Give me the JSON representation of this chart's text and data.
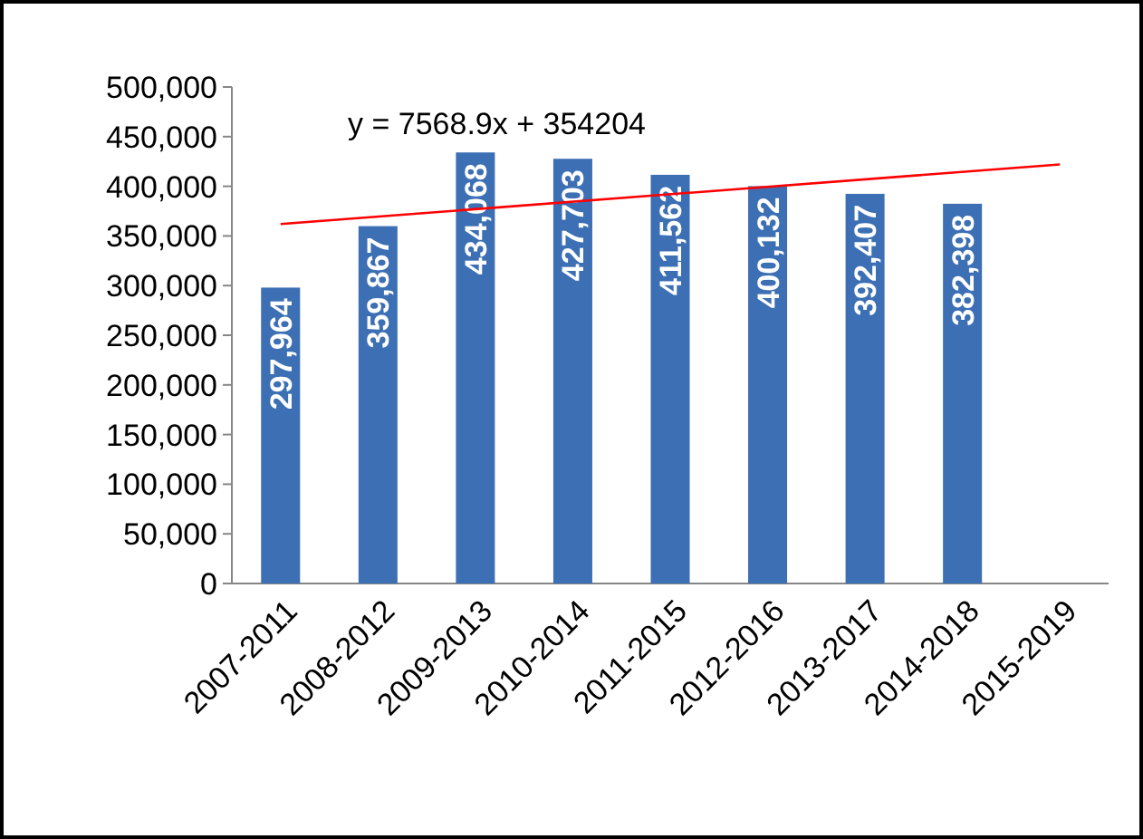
{
  "chart_data": {
    "type": "bar",
    "categories": [
      "2007-2011",
      "2008-2012",
      "2009-2013",
      "2010-2014",
      "2011-2015",
      "2012-2016",
      "2013-2017",
      "2014-2018",
      "2015-2019"
    ],
    "series": [
      {
        "color": "#3c6fb4",
        "values": [
          297964,
          359867,
          434068,
          427703,
          411562,
          400132,
          392407,
          382398,
          null
        ],
        "value_labels": [
          "297,964",
          "359,867",
          "434,068",
          "427,703",
          "411,562",
          "400,132",
          "392,407",
          "382,398",
          null
        ]
      },
      {
        "type": "line",
        "color": "#ff0000",
        "x": [
          "2007-2011",
          "2015-2019"
        ],
        "values": [
          362000,
          422000
        ]
      }
    ],
    "ylim": [
      0,
      500000
    ],
    "yticks": [
      {
        "value": 0,
        "label": "0"
      },
      {
        "value": 50000,
        "label": "50,000"
      },
      {
        "value": 100000,
        "label": "100,000"
      },
      {
        "value": 150000,
        "label": "150,000"
      },
      {
        "value": 200000,
        "label": "200,000"
      },
      {
        "value": 250000,
        "label": "250,000"
      },
      {
        "value": 300000,
        "label": "300,000"
      },
      {
        "value": 350000,
        "label": "350,000"
      },
      {
        "value": 400000,
        "label": "400,000"
      },
      {
        "value": 450000,
        "label": "450,000"
      },
      {
        "value": 500000,
        "label": "500,000"
      }
    ],
    "annotations": [
      "y = 7568.9x + 354204"
    ],
    "grid": false
  }
}
